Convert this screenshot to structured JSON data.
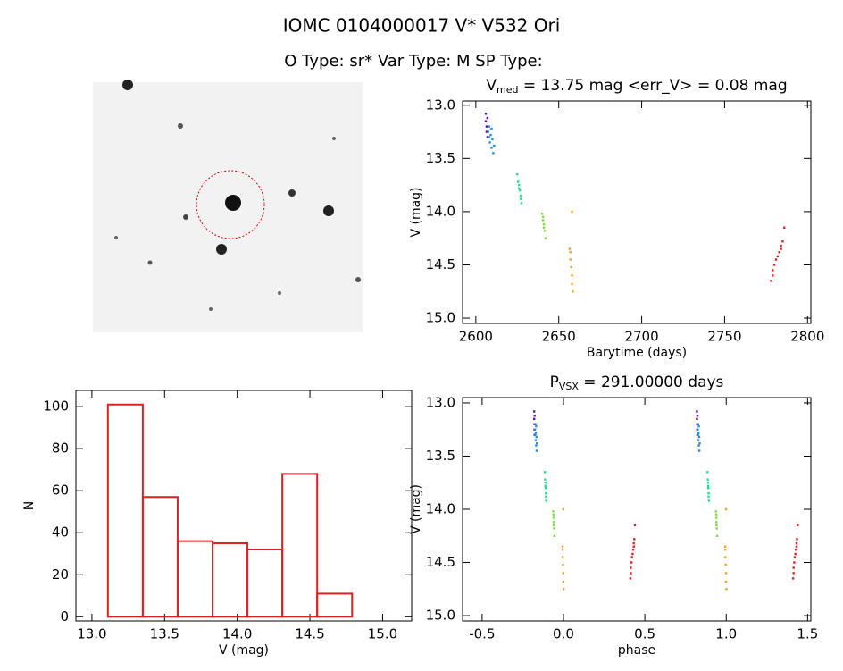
{
  "title": "IOMC 0104000017    V* V532 Ori",
  "subtitle": "O Type: sr*  Var Type: M  SP Type:",
  "chart_data": [
    {
      "type": "scatter",
      "title": [
        "V",
        "med",
        " = 13.75 mag <err_V> = 0.08 mag"
      ],
      "x_label": "Barytime (days)",
      "y_label": "V (mag)",
      "xlim": [
        2592,
        2802
      ],
      "xticks": [
        2600,
        2650,
        2700,
        2750,
        2800
      ],
      "ylim": [
        15.05,
        12.96
      ],
      "yticks": [
        {
          "value": 13,
          "label": "13.0"
        },
        {
          "value": 13.5,
          "label": "13.5"
        },
        {
          "value": 14,
          "label": "14.0"
        },
        {
          "value": 14.5,
          "label": "14.5"
        },
        {
          "value": 15,
          "label": "15.0"
        }
      ],
      "series": [
        {
          "color": "#5a10b0",
          "x": [
            2606,
            2606,
            2606.5,
            2606.5,
            2607,
            2607
          ],
          "values": [
            13.08,
            13.15,
            13.2,
            13.25,
            13.3,
            13.12
          ]
        },
        {
          "color": "#1f8fe0",
          "x": [
            2607.5,
            2608,
            2608.5,
            2609,
            2609.5,
            2610,
            2610.5,
            2611,
            2608,
            2609.5
          ],
          "values": [
            13.25,
            13.3,
            13.35,
            13.28,
            13.4,
            13.32,
            13.45,
            13.38,
            13.2,
            13.22
          ]
        },
        {
          "color": "#1fe08a",
          "x": [
            2625,
            2625.5,
            2626,
            2626.5,
            2627,
            2627.5,
            2626,
            2627
          ],
          "values": [
            13.65,
            13.72,
            13.78,
            13.8,
            13.85,
            13.92,
            13.75,
            13.88
          ]
        },
        {
          "color": "#7be03c",
          "x": [
            2640,
            2640.5,
            2641,
            2641.5,
            2642,
            2641,
            2640.5
          ],
          "values": [
            14.02,
            14.08,
            14.12,
            14.18,
            14.25,
            14.15,
            14.05
          ]
        },
        {
          "color": "#f0a420",
          "x": [
            2658,
            2656.5,
            2657,
            2657,
            2657.5,
            2658,
            2658,
            2658.5
          ],
          "values": [
            14.0,
            14.35,
            14.38,
            14.45,
            14.52,
            14.6,
            14.68,
            14.75
          ]
        },
        {
          "color": "#e02020",
          "x": [
            2778,
            2779,
            2780,
            2781,
            2782,
            2783,
            2784,
            2785,
            2786,
            2779,
            2784
          ],
          "values": [
            14.65,
            14.55,
            14.5,
            14.45,
            14.42,
            14.38,
            14.32,
            14.28,
            14.15,
            14.6,
            14.35
          ]
        }
      ]
    },
    {
      "type": "scatter",
      "title": [
        "P",
        "VSX",
        " = 291.00000 days"
      ],
      "x_label": "phase",
      "y_label": "V (mag)",
      "xlim": [
        -0.62,
        1.52
      ],
      "xticks": [
        -0.5,
        {
          "value": 0,
          "label": "0.0"
        },
        0.5,
        {
          "value": 1,
          "label": "1.0"
        },
        1.5
      ],
      "ylim": [
        15.05,
        12.95
      ],
      "yticks": [
        {
          "value": 13,
          "label": "13.0"
        },
        {
          "value": 13.5,
          "label": "13.5"
        },
        {
          "value": 14,
          "label": "14.0"
        },
        {
          "value": 14.5,
          "label": "14.5"
        },
        {
          "value": 15,
          "label": "15.0"
        }
      ],
      "series": [
        {
          "color": "#5a10b0",
          "x": [
            -0.18,
            -0.18,
            -0.178,
            -0.178,
            -0.177,
            -0.177,
            0.82,
            0.82,
            0.822,
            0.822,
            0.823,
            0.823
          ],
          "values": [
            13.08,
            13.15,
            13.2,
            13.25,
            13.3,
            13.12,
            13.08,
            13.15,
            13.2,
            13.25,
            13.3,
            13.12
          ]
        },
        {
          "color": "#1f8fe0",
          "x": [
            -0.175,
            -0.173,
            -0.171,
            -0.17,
            -0.168,
            -0.166,
            -0.165,
            -0.163,
            -0.173,
            -0.168,
            0.825,
            0.827,
            0.829,
            0.83,
            0.832,
            0.834,
            0.835,
            0.837,
            0.827,
            0.832
          ],
          "values": [
            13.25,
            13.3,
            13.35,
            13.28,
            13.4,
            13.32,
            13.45,
            13.38,
            13.2,
            13.22,
            13.25,
            13.3,
            13.35,
            13.28,
            13.4,
            13.32,
            13.45,
            13.38,
            13.2,
            13.22
          ]
        },
        {
          "color": "#1fe08a",
          "x": [
            -0.115,
            -0.113,
            -0.111,
            -0.11,
            -0.108,
            -0.106,
            -0.111,
            -0.108,
            0.885,
            0.887,
            0.889,
            0.89,
            0.892,
            0.894,
            0.889,
            0.892
          ],
          "values": [
            13.65,
            13.72,
            13.78,
            13.8,
            13.85,
            13.92,
            13.75,
            13.88,
            13.65,
            13.72,
            13.78,
            13.8,
            13.85,
            13.92,
            13.75,
            13.88
          ]
        },
        {
          "color": "#7be03c",
          "x": [
            -0.063,
            -0.061,
            -0.06,
            -0.058,
            -0.056,
            -0.06,
            -0.061,
            0.937,
            0.939,
            0.94,
            0.942,
            0.944,
            0.94,
            0.939
          ],
          "values": [
            14.02,
            14.08,
            14.12,
            14.18,
            14.25,
            14.15,
            14.05,
            14.02,
            14.08,
            14.12,
            14.18,
            14.25,
            14.15,
            14.05
          ]
        },
        {
          "color": "#f0a420",
          "x": [
            -0.001,
            -0.006,
            -0.005,
            -0.005,
            -0.003,
            -0.001,
            -0.001,
            0.001,
            0.999,
            0.994,
            0.995,
            0.995,
            0.997,
            0.999,
            0.999,
            1.001
          ],
          "values": [
            14.0,
            14.35,
            14.38,
            14.45,
            14.52,
            14.6,
            14.68,
            14.75,
            14.0,
            14.35,
            14.38,
            14.45,
            14.52,
            14.6,
            14.68,
            14.75
          ]
        },
        {
          "color": "#e02020",
          "x": [
            0.411,
            0.414,
            0.418,
            0.421,
            0.425,
            0.428,
            0.432,
            0.435,
            0.439,
            0.414,
            0.432,
            1.411,
            1.414,
            1.418,
            1.421,
            1.425,
            1.428,
            1.432,
            1.435,
            1.439,
            1.414,
            1.432
          ],
          "values": [
            14.65,
            14.55,
            14.5,
            14.45,
            14.42,
            14.38,
            14.32,
            14.28,
            14.15,
            14.6,
            14.35,
            14.65,
            14.55,
            14.5,
            14.45,
            14.42,
            14.38,
            14.32,
            14.28,
            14.15,
            14.6,
            14.35
          ]
        }
      ]
    },
    {
      "type": "histogram",
      "x_label": "V (mag)",
      "y_label": "N",
      "color": "#e02020",
      "bins": [
        13.11,
        13.35,
        13.59,
        13.83,
        14.07,
        14.31,
        14.55,
        14.79
      ],
      "values": [
        101,
        57,
        36,
        35,
        32,
        68,
        11
      ],
      "xlim": [
        12.89,
        15.2
      ],
      "xticks": [
        {
          "value": 13,
          "label": "13.0"
        },
        {
          "value": 13.5,
          "label": "13.5"
        },
        {
          "value": 14,
          "label": "14.0"
        },
        {
          "value": 14.5,
          "label": "14.5"
        },
        {
          "value": 15,
          "label": "15.0"
        }
      ],
      "ylim": [
        -2,
        107.7
      ],
      "yticks": [
        0,
        20,
        40,
        60,
        80,
        100
      ]
    }
  ]
}
